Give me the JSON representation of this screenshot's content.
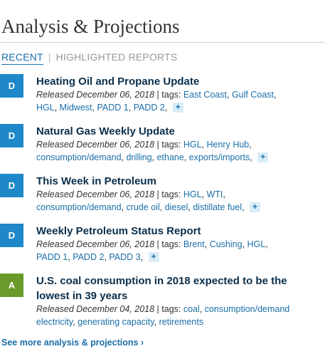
{
  "page_title": "Analysis & Projections",
  "tabs": {
    "recent": "RECENT",
    "separator": "|",
    "highlighted": "HIGHLIGHTED REPORTS"
  },
  "colors": {
    "badge_blue": "#1e88c8",
    "badge_green": "#6a9a2a",
    "link": "#1a6fa8",
    "title": "#0b2f4b"
  },
  "items": [
    {
      "badge": "D",
      "title": "Heating Oil and Propane Update",
      "released": "Released December 06, 2018",
      "tags_label": " | tags: ",
      "lines": [
        [
          "East Coast",
          "Gulf Coast"
        ],
        [
          "HGL",
          "Midwest",
          "PADD 1",
          "PADD 2"
        ]
      ]
    },
    {
      "badge": "D",
      "title": "Natural Gas Weekly Update",
      "released": "Released December 06, 2018",
      "tags_label": " | tags: ",
      "lines": [
        [
          "HGL",
          "Henry Hub"
        ],
        [
          "consumption/demand",
          "drilling",
          "ethane",
          "exports/imports"
        ]
      ]
    },
    {
      "badge": "D",
      "title": "This Week in Petroleum",
      "released": "Released December 06, 2018",
      "tags_label": " | tags: ",
      "lines": [
        [
          "HGL",
          "WTI"
        ],
        [
          "consumption/demand",
          "crude oil",
          "diesel",
          "distillate fuel"
        ]
      ]
    },
    {
      "badge": "D",
      "title": "Weekly Petroleum Status Report",
      "released": "Released December 06, 2018",
      "tags_label": " | tags: ",
      "lines": [
        [
          "Brent",
          "Cushing",
          "HGL"
        ],
        [
          "PADD 1",
          "PADD 2",
          "PADD 3"
        ]
      ]
    },
    {
      "badge": "A",
      "title_line1": "U.S. coal consumption in 2018 expected to be the",
      "title_line2": "lowest in 39 years",
      "released": "Released December 04, 2018",
      "tags_label": " | tags: ",
      "lines": [
        [
          "coal",
          "consumption/demand"
        ],
        [
          "electricity",
          "generating capacity",
          "retirements"
        ]
      ]
    }
  ],
  "plus_label": "+",
  "more_link": "See more analysis & projections ›"
}
